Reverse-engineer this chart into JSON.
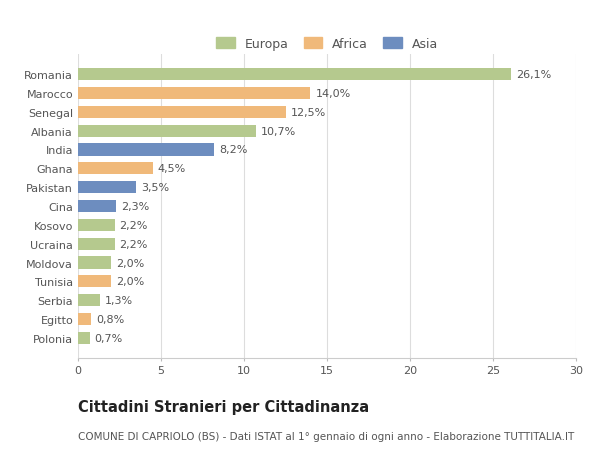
{
  "countries": [
    "Romania",
    "Marocco",
    "Senegal",
    "Albania",
    "India",
    "Ghana",
    "Pakistan",
    "Cina",
    "Kosovo",
    "Ucraina",
    "Moldova",
    "Tunisia",
    "Serbia",
    "Egitto",
    "Polonia"
  ],
  "values": [
    26.1,
    14.0,
    12.5,
    10.7,
    8.2,
    4.5,
    3.5,
    2.3,
    2.2,
    2.2,
    2.0,
    2.0,
    1.3,
    0.8,
    0.7
  ],
  "labels": [
    "26,1%",
    "14,0%",
    "12,5%",
    "10,7%",
    "8,2%",
    "4,5%",
    "3,5%",
    "2,3%",
    "2,2%",
    "2,2%",
    "2,0%",
    "2,0%",
    "1,3%",
    "0,8%",
    "0,7%"
  ],
  "continents": [
    "Europa",
    "Africa",
    "Africa",
    "Europa",
    "Asia",
    "Africa",
    "Asia",
    "Asia",
    "Europa",
    "Europa",
    "Europa",
    "Africa",
    "Europa",
    "Africa",
    "Europa"
  ],
  "colors": {
    "Europa": "#b5c98e",
    "Africa": "#f0b97a",
    "Asia": "#6d8dbf"
  },
  "xlim": [
    0,
    30
  ],
  "xticks": [
    0,
    5,
    10,
    15,
    20,
    25,
    30
  ],
  "title": "Cittadini Stranieri per Cittadinanza",
  "subtitle": "COMUNE DI CAPRIOLO (BS) - Dati ISTAT al 1° gennaio di ogni anno - Elaborazione TUTTITALIA.IT",
  "bg_color": "#ffffff",
  "bar_height": 0.65,
  "label_fontsize": 8.0,
  "title_fontsize": 10.5,
  "subtitle_fontsize": 7.5,
  "ytick_fontsize": 8.0,
  "xtick_fontsize": 8.0,
  "legend_fontsize": 9.0,
  "grid_color": "#dddddd",
  "text_color": "#555555",
  "title_color": "#222222"
}
